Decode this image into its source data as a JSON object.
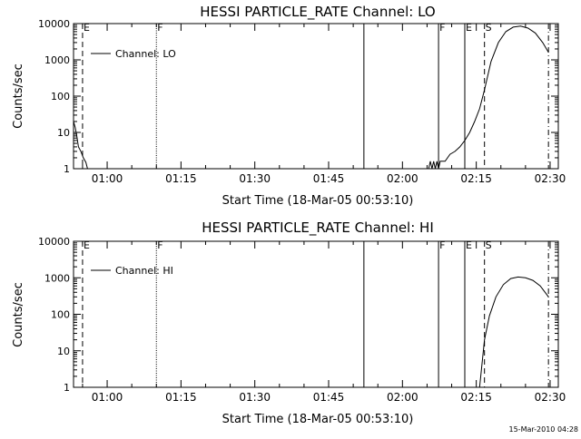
{
  "footer": {
    "timestamp": "15-Mar-2010 04:28"
  },
  "panels": [
    {
      "id": "lo",
      "title": "HESSI PARTICLE_RATE Channel: LO",
      "xlabel": "Start Time (18-Mar-05 00:53:10)",
      "ylabel": "Counts/sec",
      "legend": "Channel: LO"
    },
    {
      "id": "hi",
      "title": "HESSI PARTICLE_RATE Channel: HI",
      "xlabel": "Start Time (18-Mar-05 00:53:10)",
      "ylabel": "Counts/sec",
      "legend": "Channel: HI"
    }
  ],
  "chart_data": [
    {
      "type": "line",
      "title": "HESSI PARTICLE_RATE Channel: LO",
      "xlabel": "Start Time (18-Mar-05 00:53:10)",
      "ylabel": "Counts/sec",
      "y_scale": "log",
      "ylim": [
        1,
        10000
      ],
      "xlim": [
        "00:53:10",
        "02:31:40"
      ],
      "x_ticks": [
        "01:00",
        "01:15",
        "01:30",
        "01:45",
        "02:00",
        "02:15",
        "02:30"
      ],
      "y_ticks": [
        "1",
        "10",
        "100",
        "1000",
        "10000"
      ],
      "legend": {
        "entries": [
          "Channel: LO"
        ],
        "placement": "top-left"
      },
      "markers": [
        {
          "time": "00:55:00",
          "label": "E",
          "style": "dashed"
        },
        {
          "time": "01:10:00",
          "label": "F",
          "style": "dotted"
        },
        {
          "time": "01:52:10",
          "label": "",
          "style": "solid"
        },
        {
          "time": "02:07:20",
          "label": "F",
          "style": "solid"
        },
        {
          "time": "02:12:40",
          "label": "E",
          "style": "solid"
        },
        {
          "time": "02:16:40",
          "label": "S",
          "style": "dashed"
        },
        {
          "time": "02:29:40",
          "label": "",
          "style": "dashdot"
        }
      ],
      "series": [
        {
          "name": "Channel: LO",
          "segments": [
            {
              "x": [
                "00:53:10",
                "00:53:30",
                "00:53:50",
                "00:54:10",
                "00:54:40",
                "00:55:10",
                "00:55:40",
                "00:56:00"
              ],
              "y": [
                20,
                14,
                8,
                4,
                3,
                2,
                1.5,
                1
              ]
            },
            {
              "x": [
                "02:05:20",
                "02:05:40",
                "02:06:00",
                "02:06:20",
                "02:06:40",
                "02:07:00",
                "02:07:20",
                "02:07:40",
                "02:08:40",
                "02:09:40",
                "02:10:40",
                "02:11:40",
                "02:12:40",
                "02:13:40",
                "02:14:40",
                "02:15:40",
                "02:16:40",
                "02:18:00",
                "02:19:30",
                "02:21:00",
                "02:22:30",
                "02:24:00",
                "02:25:30",
                "02:27:00",
                "02:28:30",
                "02:29:40"
              ],
              "y": [
                1,
                1.6,
                1,
                1.6,
                1,
                1.6,
                1,
                1.6,
                1.6,
                2.5,
                3,
                4,
                6,
                10,
                20,
                45,
                150,
                900,
                3000,
                6000,
                8000,
                8500,
                7500,
                5500,
                3000,
                1600
              ]
            }
          ]
        }
      ]
    },
    {
      "type": "line",
      "title": "HESSI PARTICLE_RATE Channel: HI",
      "xlabel": "Start Time (18-Mar-05 00:53:10)",
      "ylabel": "Counts/sec",
      "y_scale": "log",
      "ylim": [
        1,
        10000
      ],
      "xlim": [
        "00:53:10",
        "02:31:40"
      ],
      "x_ticks": [
        "01:00",
        "01:15",
        "01:30",
        "01:45",
        "02:00",
        "02:15",
        "02:30"
      ],
      "y_ticks": [
        "1",
        "10",
        "100",
        "1000",
        "10000"
      ],
      "legend": {
        "entries": [
          "Channel: HI"
        ],
        "placement": "top-left"
      },
      "markers": [
        {
          "time": "00:55:00",
          "label": "E",
          "style": "dashed"
        },
        {
          "time": "01:10:00",
          "label": "F",
          "style": "dotted"
        },
        {
          "time": "01:52:10",
          "label": "",
          "style": "solid"
        },
        {
          "time": "02:07:20",
          "label": "F",
          "style": "solid"
        },
        {
          "time": "02:12:40",
          "label": "E",
          "style": "solid"
        },
        {
          "time": "02:16:40",
          "label": "S",
          "style": "dashed"
        },
        {
          "time": "02:29:40",
          "label": "",
          "style": "dashdot"
        }
      ],
      "series": [
        {
          "name": "Channel: HI",
          "segments": [
            {
              "x": [
                "02:15:40",
                "02:16:40",
                "02:17:40",
                "02:19:00",
                "02:20:30",
                "02:22:00",
                "02:23:30",
                "02:25:00",
                "02:26:30",
                "02:28:00",
                "02:29:40"
              ],
              "y": [
                1,
                20,
                90,
                300,
                650,
                950,
                1050,
                1000,
                850,
                600,
                300
              ]
            }
          ]
        }
      ]
    }
  ]
}
